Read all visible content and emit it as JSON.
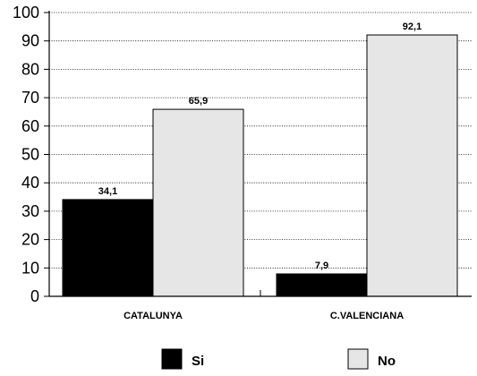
{
  "chart_data": {
    "type": "bar",
    "title": "",
    "xlabel": "",
    "ylabel": "",
    "categories": [
      "CATALUNYA",
      "C.VALENCIANA"
    ],
    "series": [
      {
        "name": "Si",
        "values": [
          34.1,
          7.9
        ],
        "value_labels": [
          "34,1",
          "7,9"
        ],
        "color": "#000000"
      },
      {
        "name": "No",
        "values": [
          65.9,
          92.1
        ],
        "value_labels": [
          "65,9",
          "92,1"
        ],
        "color": "#e6e6e6"
      }
    ],
    "ylim": [
      0,
      100
    ],
    "yticks": [
      0,
      10,
      20,
      30,
      40,
      50,
      60,
      70,
      80,
      90,
      100
    ],
    "ytick_labels": [
      "0",
      "10",
      "20",
      "30",
      "40",
      "50",
      "60",
      "70",
      "80",
      "90",
      "100"
    ],
    "grid": "horizontal-dotted",
    "legend": {
      "placement": "bottom",
      "items": [
        "Si",
        "No"
      ]
    }
  }
}
